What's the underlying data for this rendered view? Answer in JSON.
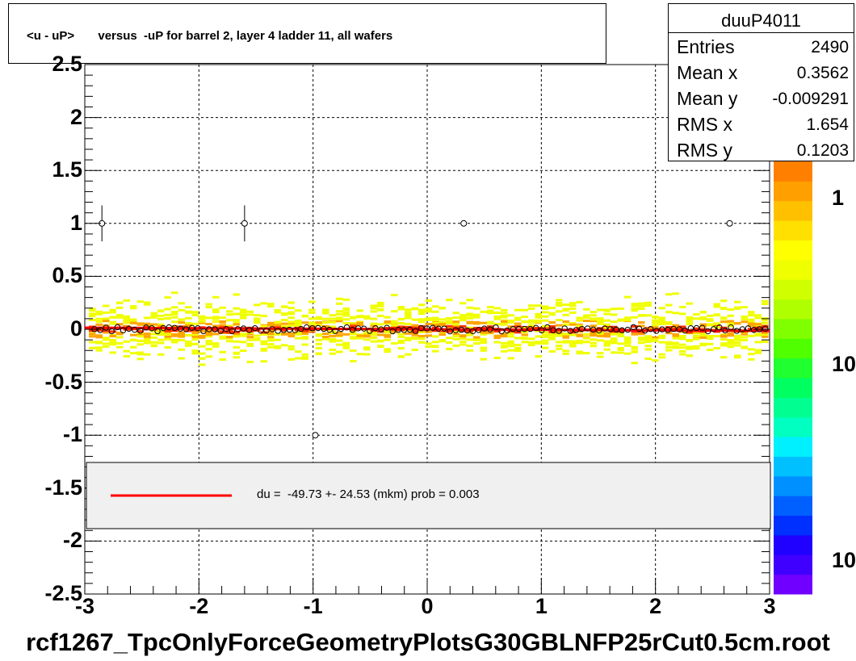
{
  "title": "<u - uP>       versus  -uP for barrel 2, layer 4 ladder 11, all wafers",
  "stats": {
    "name": "duuP4011",
    "rows": [
      {
        "label": "Entries",
        "value": "2490"
      },
      {
        "label": "Mean x",
        "value": "0.3562"
      },
      {
        "label": "Mean y",
        "value": "-0.009291"
      },
      {
        "label": "RMS x",
        "value": "1.654"
      },
      {
        "label": "RMS y",
        "value": "0.1203"
      }
    ]
  },
  "legend": {
    "text": "du =  -49.73 +- 24.53 (mkm) prob = 0.003",
    "line_color": "#ff0000"
  },
  "footer": "rcf1267_TpcOnlyForceGeometryPlotsG30GBLNFP25rCut0.5cm.root",
  "palette_labels": [
    "1",
    "10",
    "10"
  ],
  "colors": {
    "fit_line": "#ff0000",
    "hist_low": "#f0ff00",
    "hist_mid": "#ffa500",
    "hist_high": "#ff3000"
  },
  "chart_data": {
    "type": "heatmap",
    "title": "<u - uP>       versus  -uP for barrel 2, layer 4 ladder 11, all wafers",
    "xlabel": "",
    "ylabel": "",
    "xlim": [
      -3,
      3
    ],
    "ylim": [
      -2.5,
      2.5
    ],
    "x_ticks": [
      "-3",
      "-2",
      "-1",
      "0",
      "1",
      "2",
      "3"
    ],
    "y_ticks": [
      "-2.5",
      "-2",
      "-1.5",
      "-1",
      "-0.5",
      "0",
      "0.5",
      "1",
      "1.5",
      "2",
      "2.5"
    ],
    "grid": true,
    "fit": {
      "slope": -0.004973,
      "intercept": 0.0
    },
    "profile_outliers": [
      {
        "x": -2.85,
        "y": 1.0,
        "err": 0.17
      },
      {
        "x": -1.6,
        "y": 1.0,
        "err": 0.17
      },
      {
        "x": 0.32,
        "y": 1.0,
        "err": 0.0
      },
      {
        "x": 2.65,
        "y": 1.0,
        "err": 0.0
      },
      {
        "x": -0.98,
        "y": -1.0,
        "err": 0.0
      }
    ],
    "profile_mean_y": 0.0
  }
}
